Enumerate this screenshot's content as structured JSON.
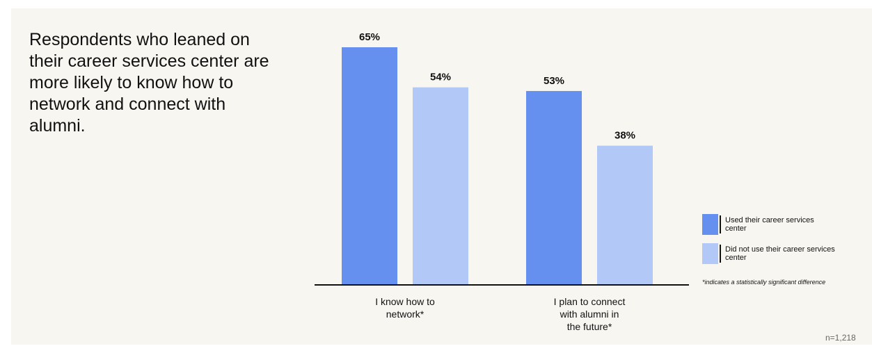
{
  "headline": "Respondents who leaned on their career services center are more likely to know how to network and connect with alumni.",
  "chart_data": {
    "type": "bar",
    "categories": [
      [
        "I know how to",
        "network*"
      ],
      [
        "I plan to connect",
        "with alumni in",
        "the future*"
      ]
    ],
    "series": [
      {
        "name": "Used their career services center",
        "values": [
          65,
          53
        ],
        "color": "#6590f0"
      },
      {
        "name": "Did not use their career services center",
        "values": [
          54,
          38
        ],
        "color": "#b2c8f7"
      }
    ],
    "value_suffix": "%",
    "ylim": [
      0,
      65
    ],
    "grid": false,
    "legend_position": "right"
  },
  "legend": {
    "items": [
      {
        "label": "Used their career services center",
        "color": "#6590f0"
      },
      {
        "label": "Did not use their career services center",
        "color": "#b2c8f7"
      }
    ]
  },
  "footnote": "*indicates a statistically significant difference",
  "sample_size": "n=1,218"
}
